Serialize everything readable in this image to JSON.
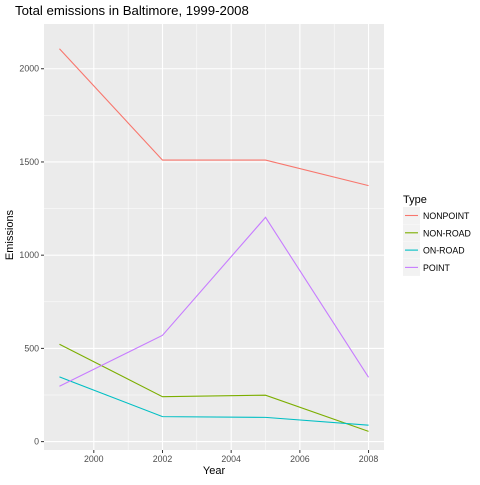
{
  "chart_data": {
    "type": "line",
    "title": "Total emissions in Baltimore, 1999-2008",
    "xlabel": "Year",
    "ylabel": "Emissions",
    "xlim": [
      1998.55,
      2008.45
    ],
    "ylim": [
      -45,
      2240
    ],
    "x_ticks": [
      2000,
      2002,
      2004,
      2006,
      2008
    ],
    "x_tick_labels": [
      "2000",
      "2002",
      "2004",
      "2006",
      "2008"
    ],
    "y_ticks": [
      0,
      500,
      1000,
      1500,
      2000
    ],
    "y_tick_labels": [
      "0",
      "500",
      "1000",
      "1500",
      "2000"
    ],
    "x": [
      1999,
      2002,
      2005,
      2008
    ],
    "series": [
      {
        "name": "NONPOINT",
        "color": "#F8766D",
        "values": [
          2107,
          1510,
          1510,
          1373
        ]
      },
      {
        "name": "NON-ROAD",
        "color": "#7CAE00",
        "values": [
          522,
          241,
          249,
          55
        ]
      },
      {
        "name": "ON-ROAD",
        "color": "#00BFC4",
        "values": [
          347,
          134,
          130,
          88
        ]
      },
      {
        "name": "POINT",
        "color": "#C77CFF",
        "values": [
          297,
          570,
          1203,
          345
        ]
      }
    ],
    "legend": {
      "title": "Type",
      "placement": "right"
    },
    "grid": true,
    "panel_background": "#EBEBEB",
    "grid_color": "#FFFFFF"
  }
}
